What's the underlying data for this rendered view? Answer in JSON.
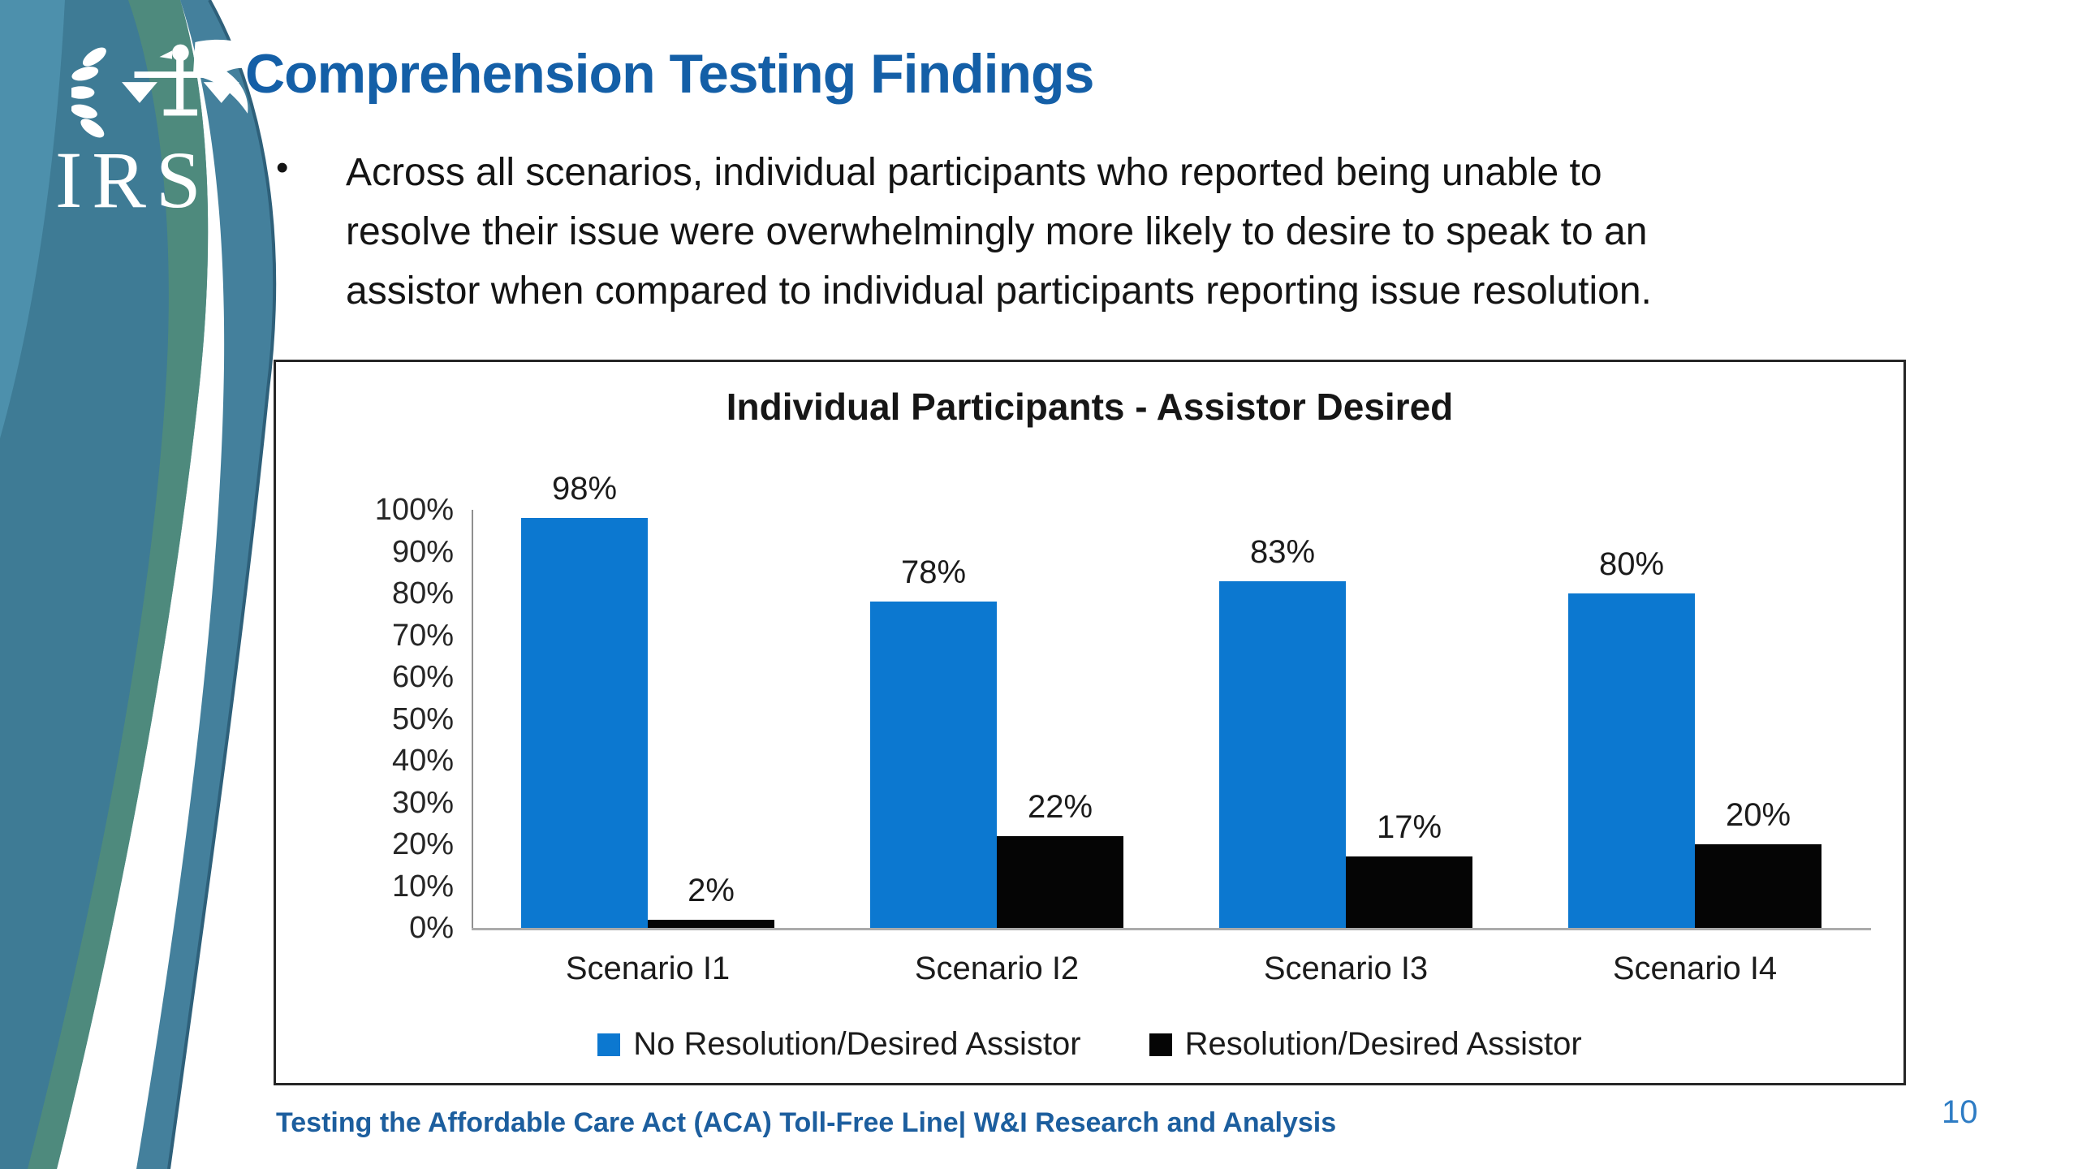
{
  "slide": {
    "logo": {
      "text": "IRS"
    },
    "title": "Comprehension Testing Findings",
    "bullet": {
      "marker": "•",
      "lines": [
        "Across all scenarios, individual participants who reported being unable to",
        "resolve their issue were overwhelmingly more likely to desire to speak to an",
        "assistor when compared to individual participants reporting issue resolution."
      ]
    },
    "footer": "Testing the Affordable Care Act (ACA) Toll-Free Line| W&I Research and Analysis",
    "page_number": "10"
  },
  "colors": {
    "accent_title_blue": "#145fa7",
    "bar_blue": "#0c78d0",
    "bar_black": "#050505",
    "wave_teal": "#3e7b95",
    "wave_green": "#4f8b7b",
    "wave_light_blue": "#5094b0",
    "wave_outer_band": "#44809c",
    "axis_gray": "#ababab"
  },
  "chart_data": {
    "type": "bar",
    "title": "Individual Participants - Assistor Desired",
    "categories": [
      "Scenario I1",
      "Scenario I2",
      "Scenario I3",
      "Scenario I4"
    ],
    "series": [
      {
        "name": "No Resolution/Desired Assistor",
        "color": "#0c78d0",
        "values": [
          98,
          78,
          83,
          80
        ]
      },
      {
        "name": "Resolution/Desired Assistor",
        "color": "#050505",
        "values": [
          2,
          22,
          17,
          20
        ]
      }
    ],
    "value_suffix": "%",
    "ylim": [
      0,
      100
    ],
    "ytick_step": 10,
    "ytick_suffix": "%",
    "grid": false,
    "data_labels": true,
    "legend_position": "bottom"
  }
}
